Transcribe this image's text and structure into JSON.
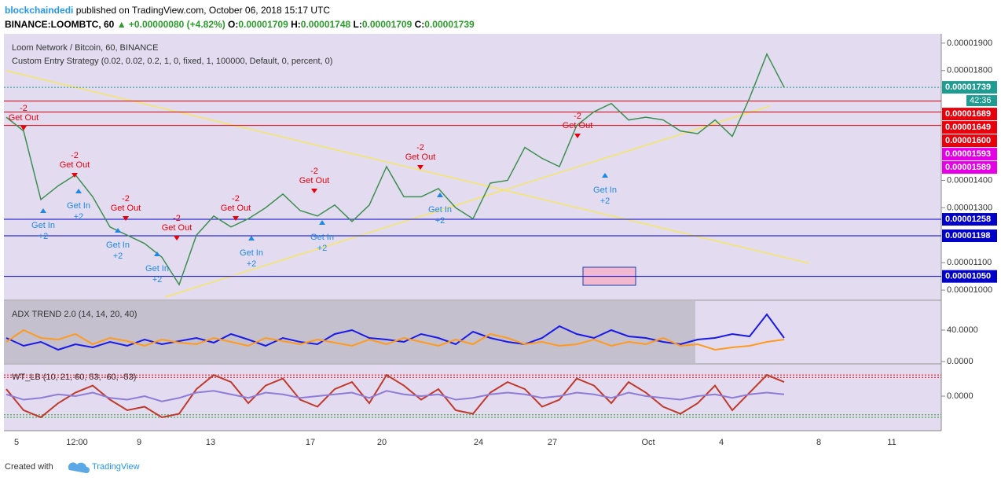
{
  "header": {
    "author": "blockchaindedi",
    "published": " published on TradingView.com, October 06, 2018 15:17 UTC",
    "symbol": "BINANCE:LOOMBTC, 60",
    "arrow": "▲",
    "change": "+0.00000080 (+4.82%)",
    "o_label": "O:",
    "o": "0.00001709",
    "h_label": "H:",
    "h": "0.00001748",
    "l_label": "L:",
    "l": "0.00001709",
    "c_label": "C:",
    "c": "0.00001739"
  },
  "chart_data": [
    {
      "type": "candle-line",
      "title": "Loom Network / Bitcoin, 60, BINANCE",
      "subtitle": "Custom Entry Strategy (0.02, 0.02, 0.2, 1, 0, fixed, 1, 100000, Default, 0, percent, 0)",
      "ylim": [
        9.66e-06,
        1.934e-05
      ],
      "yticks": [
        {
          "value": 1.9e-05,
          "label": "0.00001900"
        },
        {
          "value": 1.8e-05,
          "label": "0.00001800"
        },
        {
          "value": 1.4e-05,
          "label": "0.00001400"
        },
        {
          "value": 1.3e-05,
          "label": "0.00001300"
        },
        {
          "value": 1.1e-05,
          "label": "0.00001100"
        },
        {
          "value": 1e-05,
          "label": "0.00001000"
        }
      ],
      "color": "#3c8f4f",
      "values": [
        1.63e-05,
        1.58e-05,
        1.33e-05,
        1.38e-05,
        1.42e-05,
        1.34e-05,
        1.23e-05,
        1.2e-05,
        1.17e-05,
        1.12e-05,
        1.02e-05,
        1.2e-05,
        1.27e-05,
        1.23e-05,
        1.26e-05,
        1.3e-05,
        1.35e-05,
        1.29e-05,
        1.27e-05,
        1.31e-05,
        1.25e-05,
        1.31e-05,
        1.45e-05,
        1.34e-05,
        1.34e-05,
        1.37e-05,
        1.3e-05,
        1.26e-05,
        1.39e-05,
        1.4e-05,
        1.52e-05,
        1.48e-05,
        1.45e-05,
        1.6e-05,
        1.65e-05,
        1.68e-05,
        1.62e-05,
        1.63e-05,
        1.62e-05,
        1.58e-05,
        1.57e-05,
        1.62e-05,
        1.56e-05,
        1.7e-05,
        1.86e-05,
        1.739e-05
      ],
      "price_tags": [
        {
          "value": 1.739e-05,
          "label": "0.00001739",
          "color": "#1f9c91",
          "line": "dotted"
        },
        {
          "value": 1.689e-05,
          "label": "0.00001689",
          "color": "#e8000b",
          "line": "solid"
        },
        {
          "value": 1.649e-05,
          "label": "0.00001649",
          "color": "#e8000b",
          "line": "solid"
        },
        {
          "value": 1.6e-05,
          "label": "0.00001600",
          "color": "#e8000b",
          "line": "solid"
        },
        {
          "value": 1.593e-05,
          "label": "0.00001593",
          "color": "#e600e6",
          "line": "none"
        },
        {
          "value": 1.589e-05,
          "label": "0.00001589",
          "color": "#e600e6",
          "line": "none"
        },
        {
          "value": 1.258e-05,
          "label": "0.00001258",
          "color": "#0000c8",
          "line": "solid"
        },
        {
          "value": 1.198e-05,
          "label": "0.00001198",
          "color": "#0000c8",
          "line": "solid"
        },
        {
          "value": 1.05e-05,
          "label": "0.00001050",
          "color": "#0000c8",
          "line": "solid"
        }
      ],
      "countdown": "42:36",
      "signals": [
        {
          "text": "Get Out",
          "qty": "-2"
        },
        {
          "text": "Get In",
          "qty": "+2"
        },
        {
          "text": "Get Out",
          "qty": "-2"
        },
        {
          "text": "Get In",
          "qty": "+2"
        },
        {
          "text": "Get Out",
          "qty": "-2"
        },
        {
          "text": "Get In",
          "qty": "+2"
        },
        {
          "text": "Get Out",
          "qty": "-2"
        },
        {
          "text": "Get In",
          "qty": "+2"
        },
        {
          "text": "Get Out",
          "qty": "-2"
        },
        {
          "text": "Get In",
          "qty": "+2"
        },
        {
          "text": "Get Out",
          "qty": "-2"
        },
        {
          "text": "Get In",
          "qty": "+2"
        },
        {
          "text": "Get Out",
          "qty": "-2"
        },
        {
          "text": "Get In",
          "qty": "+2"
        },
        {
          "text": "Get Out",
          "qty": "-2"
        },
        {
          "text": "Get In",
          "qty": "+2"
        }
      ],
      "x_labels": [
        "5",
        "12:00",
        "9",
        "13",
        "17",
        "20",
        "24",
        "27",
        "Oct",
        "4",
        "8",
        "11"
      ]
    },
    {
      "type": "line",
      "title": "ADX TREND 2.0 (14, 14, 20, 40)",
      "ylim": [
        -2,
        77
      ],
      "yticks": [
        {
          "value": 40,
          "label": "40.0000"
        },
        {
          "value": 0,
          "label": "0.0000"
        }
      ],
      "series": [
        {
          "color": "#1a1ae6",
          "values": [
            30,
            20,
            25,
            15,
            22,
            18,
            25,
            20,
            28,
            22,
            26,
            30,
            24,
            35,
            28,
            20,
            30,
            25,
            22,
            35,
            40,
            30,
            28,
            25,
            35,
            30,
            22,
            38,
            30,
            25,
            22,
            30,
            45,
            35,
            30,
            40,
            32,
            30,
            25,
            22,
            28,
            30,
            35,
            32,
            60,
            30
          ]
        },
        {
          "color": "#ff9a1f",
          "values": [
            25,
            40,
            30,
            28,
            35,
            22,
            30,
            26,
            20,
            28,
            24,
            22,
            30,
            25,
            20,
            30,
            26,
            22,
            28,
            24,
            20,
            28,
            22,
            30,
            25,
            20,
            28,
            22,
            35,
            30,
            22,
            25,
            20,
            22,
            28,
            20,
            25,
            22,
            30,
            20,
            22,
            15,
            18,
            20,
            25,
            28
          ]
        }
      ]
    },
    {
      "type": "line",
      "title": "WT_LB (10, 21, 60, 53, -60, -53)",
      "ylim": [
        -98,
        87
      ],
      "yticks": [
        {
          "value": 0,
          "label": "0.0000"
        }
      ],
      "levels": [
        60,
        53,
        -53,
        -60
      ],
      "series": [
        {
          "color": "#c0392b",
          "values": [
            20,
            -40,
            -60,
            -20,
            10,
            30,
            -10,
            -40,
            -30,
            -60,
            -50,
            20,
            60,
            40,
            -20,
            30,
            50,
            -10,
            -30,
            20,
            40,
            -20,
            60,
            30,
            -10,
            20,
            -40,
            -50,
            10,
            40,
            20,
            -30,
            -10,
            50,
            30,
            -20,
            40,
            10,
            -30,
            -50,
            -20,
            30,
            -40,
            10,
            60,
            40
          ]
        },
        {
          "color": "#8e7cd6",
          "values": [
            5,
            -10,
            -5,
            5,
            0,
            10,
            -5,
            -10,
            0,
            -15,
            -5,
            10,
            15,
            5,
            -5,
            10,
            5,
            -5,
            0,
            5,
            10,
            -5,
            15,
            5,
            0,
            5,
            -10,
            -5,
            5,
            10,
            5,
            -5,
            0,
            10,
            5,
            -5,
            10,
            0,
            -5,
            -10,
            0,
            5,
            -5,
            5,
            10,
            5
          ]
        }
      ]
    }
  ],
  "footer": {
    "created": "Created with",
    "brand": "TradingView"
  }
}
